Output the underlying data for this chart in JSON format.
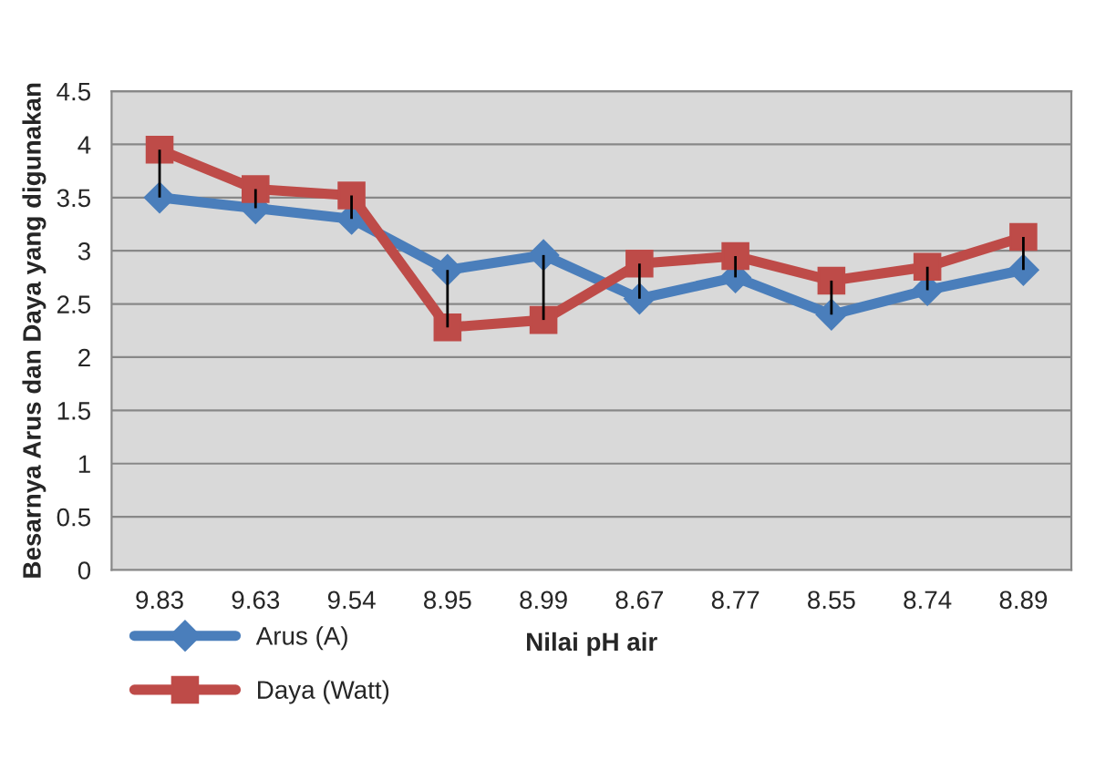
{
  "chart_data": {
    "type": "line",
    "xlabel": "Nilai pH air",
    "ylabel": "Besarnya Arus dan Daya yang digunakan",
    "categories": [
      "9.83",
      "9.63",
      "9.54",
      "8.95",
      "8.99",
      "8.67",
      "8.77",
      "8.55",
      "8.74",
      "8.89"
    ],
    "series": [
      {
        "name": "Arus (A)",
        "color": "#4a7ebb",
        "marker": "diamond",
        "values": [
          3.5,
          3.4,
          3.3,
          2.82,
          2.96,
          2.55,
          2.75,
          2.4,
          2.63,
          2.82
        ],
        "errors": [
          [
            3.5,
            3.95
          ],
          [
            3.4,
            3.58
          ],
          [
            3.3,
            3.52
          ],
          [
            2.28,
            2.82
          ],
          [
            2.35,
            2.96
          ],
          [
            2.55,
            2.88
          ],
          [
            2.75,
            2.95
          ],
          [
            2.4,
            2.72
          ],
          [
            2.63,
            2.85
          ],
          [
            2.82,
            3.13
          ]
        ]
      },
      {
        "name": "Daya (Watt)",
        "color": "#be4b48",
        "marker": "square",
        "values": [
          3.95,
          3.58,
          3.52,
          2.28,
          2.35,
          2.88,
          2.95,
          2.72,
          2.85,
          3.13
        ]
      }
    ],
    "ylim": [
      0,
      4.5
    ],
    "yticks": [
      0,
      0.5,
      1,
      1.5,
      2,
      2.5,
      3,
      3.5,
      4,
      4.5
    ],
    "grid": "y",
    "legend": "bottom left",
    "line_style": "solid"
  }
}
